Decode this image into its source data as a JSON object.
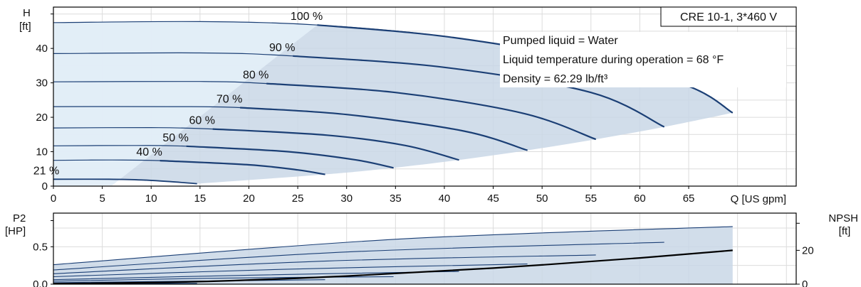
{
  "chart_data": [
    {
      "type": "line",
      "title_box": "CRE 10-1, 3*460 V",
      "ylabel_line1": "H",
      "ylabel_line2": "[ft]",
      "xlabel": "Q [US gpm]",
      "xlim": [
        0,
        76
      ],
      "ylim": [
        0,
        52
      ],
      "x_ticks": [
        "0",
        "5",
        "10",
        "15",
        "20",
        "25",
        "30",
        "35",
        "40",
        "45",
        "50",
        "55",
        "60",
        "65"
      ],
      "y_ticks": [
        "0",
        "10",
        "20",
        "30",
        "40"
      ],
      "info_lines": [
        "Pumped liquid = Water",
        "Liquid temperature during operation = 68 °F",
        "Density = 62.29 lb/ft³"
      ],
      "grid": true,
      "series": [
        {
          "name": "100 %",
          "color": "#1b3f75",
          "points": [
            [
              0,
              47.5
            ],
            [
              15,
              47.8
            ],
            [
              27,
              46.8
            ],
            [
              40,
              43.5
            ],
            [
              55,
              36.5
            ],
            [
              65,
              29
            ],
            [
              69.5,
              21.3
            ]
          ]
        },
        {
          "name": "90 %",
          "color": "#1b3f75",
          "points": [
            [
              0,
              38.5
            ],
            [
              15,
              38.7
            ],
            [
              24.5,
              37.8
            ],
            [
              40,
              34.5
            ],
            [
              55,
              27.2
            ],
            [
              62.5,
              17.2
            ]
          ]
        },
        {
          "name": "80 %",
          "color": "#1b3f75",
          "points": [
            [
              0,
              30.3
            ],
            [
              15,
              30.4
            ],
            [
              21.8,
              29.8
            ],
            [
              35,
              27.2
            ],
            [
              48,
              21.2
            ],
            [
              55.5,
              13.6
            ]
          ]
        },
        {
          "name": "70 %",
          "color": "#1b3f75",
          "points": [
            [
              0,
              23.1
            ],
            [
              12,
              23.1
            ],
            [
              19.1,
              22.8
            ],
            [
              30,
              20.8
            ],
            [
              42,
              16
            ],
            [
              48.5,
              10.4
            ]
          ]
        },
        {
          "name": "60 %",
          "color": "#1b3f75",
          "points": [
            [
              0,
              16.9
            ],
            [
              10,
              17
            ],
            [
              16.3,
              16.6
            ],
            [
              28,
              14.8
            ],
            [
              36,
              11.8
            ],
            [
              41.5,
              7.6
            ]
          ]
        },
        {
          "name": "50 %",
          "color": "#1b3f75",
          "points": [
            [
              0,
              11.7
            ],
            [
              8,
              11.8
            ],
            [
              13.6,
              11.6
            ],
            [
              24,
              10
            ],
            [
              31,
              7.6
            ],
            [
              34.8,
              5.3
            ]
          ]
        },
        {
          "name": "40 %",
          "color": "#1b3f75",
          "points": [
            [
              0,
              7.5
            ],
            [
              6,
              7.6
            ],
            [
              10.9,
              7.4
            ],
            [
              20,
              6.2
            ],
            [
              25,
              4.7
            ],
            [
              27.8,
              3.4
            ]
          ]
        },
        {
          "name": "21 %",
          "color": "#1b3f75",
          "points": [
            [
              0,
              2
            ],
            [
              5.7,
              2
            ],
            [
              9,
              1.8
            ],
            [
              12,
              1.3
            ],
            [
              14.7,
              0.7
            ]
          ]
        }
      ]
    },
    {
      "type": "line",
      "ylabel_line1": "P2",
      "ylabel_line2": "[HP]",
      "y2label_line1": "NPSH",
      "y2label_line2": "[ft]",
      "xlim": [
        0,
        76
      ],
      "ylim": [
        0,
        0.95
      ],
      "y2lim": [
        0,
        42
      ],
      "y_ticks": [
        "0.0",
        "0.5"
      ],
      "y2_ticks": [
        "0",
        "20"
      ],
      "grid": true,
      "power_series": [
        {
          "name": "100 %",
          "color": "#1b3f75",
          "points": [
            [
              0,
              0.26
            ],
            [
              35,
              0.6
            ],
            [
              69.5,
              0.77
            ]
          ]
        },
        {
          "name": "90 %",
          "color": "#1b3f75",
          "points": [
            [
              0,
              0.19
            ],
            [
              30,
              0.43
            ],
            [
              62.5,
              0.56
            ]
          ]
        },
        {
          "name": "80 %",
          "color": "#1b3f75",
          "points": [
            [
              0,
              0.14
            ],
            [
              28,
              0.31
            ],
            [
              55.5,
              0.39
            ]
          ]
        },
        {
          "name": "70 %",
          "color": "#1b3f75",
          "points": [
            [
              0,
              0.1
            ],
            [
              24,
              0.2
            ],
            [
              48.5,
              0.27
            ]
          ]
        },
        {
          "name": "60 %",
          "color": "#1b3f75",
          "points": [
            [
              0,
              0.06
            ],
            [
              20,
              0.12
            ],
            [
              41.5,
              0.17
            ]
          ]
        },
        {
          "name": "50 %",
          "color": "#1b3f75",
          "points": [
            [
              0,
              0.04
            ],
            [
              17,
              0.08
            ],
            [
              34.8,
              0.1
            ]
          ]
        },
        {
          "name": "40 %",
          "color": "#1b3f75",
          "points": [
            [
              0,
              0.02
            ],
            [
              14,
              0.04
            ],
            [
              27.8,
              0.06
            ]
          ]
        },
        {
          "name": "21 %",
          "color": "#1b3f75",
          "points": [
            [
              0,
              0.005
            ],
            [
              14.7,
              0.01
            ]
          ]
        }
      ],
      "npsh_series": {
        "color": "#000000",
        "points": [
          [
            0,
            0.3
          ],
          [
            15,
            1.5
          ],
          [
            30,
            4.8
          ],
          [
            45,
            9.5
          ],
          [
            60,
            15.5
          ],
          [
            69.5,
            20
          ]
        ]
      }
    }
  ]
}
